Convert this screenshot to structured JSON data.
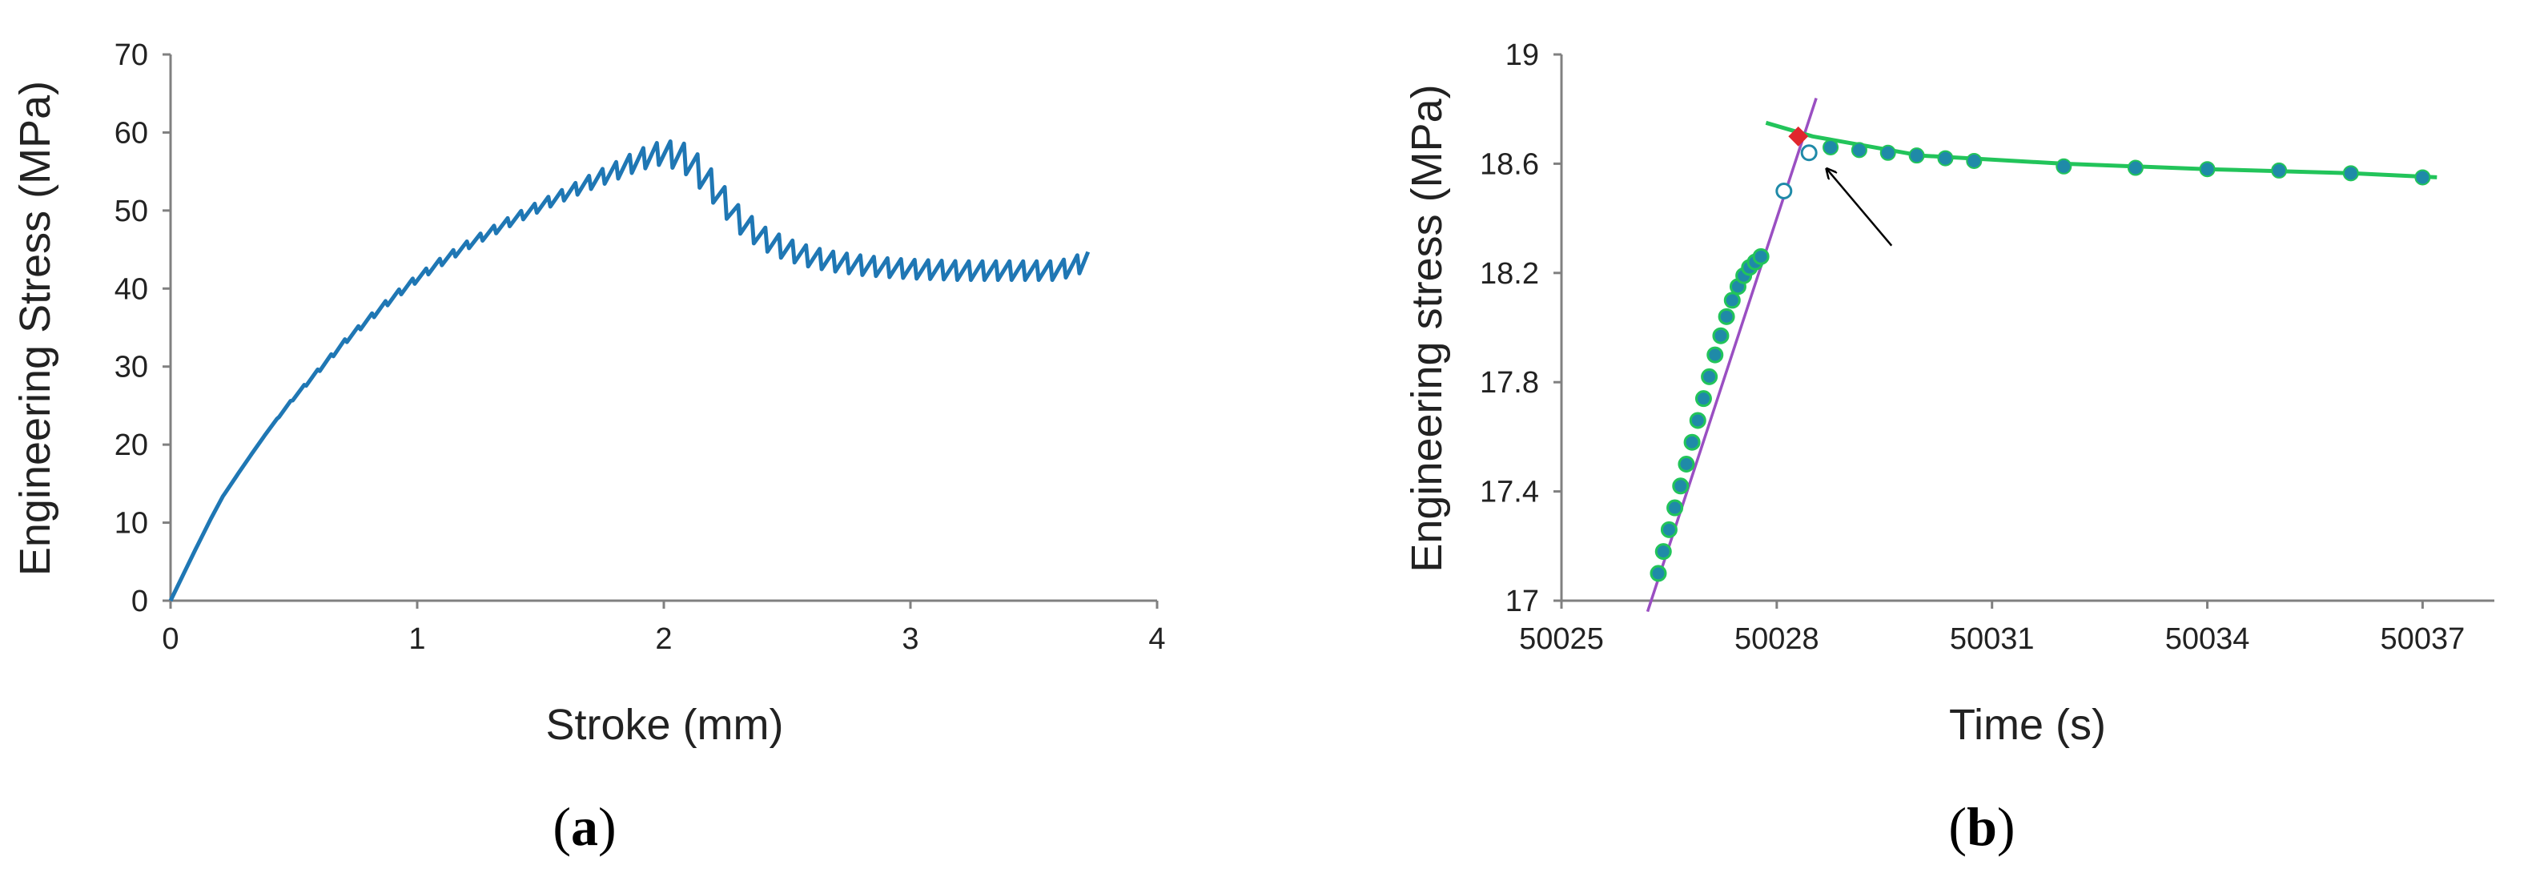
{
  "colors": {
    "curve_a": "#1f77b4",
    "marker_b": "#1f8aa8",
    "fit_purple": "#9a4fc2",
    "fit_green": "#22c45a",
    "highlight": "#e0262d",
    "axis": "#808080"
  },
  "chart_data": [
    {
      "panel": "(a)",
      "panel_open": "(",
      "panel_letter": "a",
      "panel_close": ")",
      "type": "line",
      "xlabel": "Stroke (mm)",
      "ylabel": "Engineering Stress (MPa)",
      "xlim": [
        0,
        4
      ],
      "ylim": [
        0,
        70
      ],
      "xticks": [
        "0",
        "1",
        "2",
        "3",
        "4"
      ],
      "yticks": [
        "0",
        "10",
        "20",
        "30",
        "40",
        "50",
        "60",
        "70"
      ],
      "grid": false,
      "legend": "none",
      "series": [
        {
          "description": "serrated stress-stroke curve",
          "x": [
            0,
            0.1,
            0.2,
            0.3,
            0.4,
            0.5,
            0.6,
            0.7,
            0.8,
            0.9,
            1.0,
            1.1,
            1.2,
            1.3,
            1.4,
            1.5,
            1.6,
            1.7,
            1.8,
            1.9,
            2.0,
            2.1,
            2.2,
            2.3,
            2.4,
            2.5,
            2.6,
            2.7,
            2.8,
            2.9,
            3.0,
            3.1,
            3.2,
            3.3,
            3.4,
            3.5,
            3.6,
            3.72
          ],
          "y": [
            0,
            6.5,
            12.8,
            17.5,
            22.0,
            26.0,
            29.5,
            33.0,
            36.0,
            38.8,
            41.3,
            43.5,
            45.5,
            47.3,
            49.0,
            50.6,
            52.1,
            53.6,
            55.0,
            56.5,
            57.5,
            56.5,
            53.0,
            49.0,
            46.5,
            45.0,
            44.0,
            43.4,
            43.0,
            42.7,
            42.5,
            42.4,
            42.3,
            42.3,
            42.3,
            42.3,
            42.3,
            43.5
          ],
          "serration_amplitude": [
            0,
            0,
            0,
            0,
            0,
            0.3,
            0.5,
            0.6,
            0.7,
            0.8,
            0.9,
            1.0,
            1.0,
            1.1,
            1.2,
            1.3,
            1.5,
            1.8,
            2.2,
            2.6,
            3.0,
            4.0,
            4.0,
            3.5,
            3.0,
            2.8,
            2.6,
            2.5,
            2.5,
            2.4,
            2.4,
            2.4,
            2.4,
            2.4,
            2.4,
            2.4,
            2.4,
            2.4
          ]
        }
      ]
    },
    {
      "panel": "(b)",
      "panel_open": "(",
      "panel_letter": "b",
      "panel_close": ")",
      "type": "scatter",
      "xlabel": "Time (s)",
      "ylabel": "Engineering stress (MPa)",
      "xlim": [
        50025,
        50038
      ],
      "ylim": [
        17,
        19
      ],
      "xticks": [
        "50025",
        "50028",
        "50031",
        "50034",
        "50037"
      ],
      "yticks": [
        "17",
        "17.4",
        "17.8",
        "18.2",
        "18.6",
        "19"
      ],
      "grid": false,
      "legend": "none",
      "series": [
        {
          "description": "loading points (filled)",
          "x": [
            50026.35,
            50026.42,
            50026.5,
            50026.58,
            50026.66,
            50026.74,
            50026.82,
            50026.9,
            50026.98,
            50027.06,
            50027.14,
            50027.22,
            50027.3,
            50027.38,
            50027.46,
            50027.54,
            50027.62,
            50027.7,
            50027.78
          ],
          "y": [
            17.1,
            17.18,
            17.26,
            17.34,
            17.42,
            17.5,
            17.58,
            17.66,
            17.74,
            17.82,
            17.9,
            17.97,
            18.04,
            18.1,
            18.15,
            18.19,
            18.22,
            18.24,
            18.26
          ]
        },
        {
          "description": "relaxation points (filled)",
          "x": [
            50028.75,
            50029.15,
            50029.55,
            50029.95,
            50030.35,
            50030.75,
            50032.0,
            50033.0,
            50034.0,
            50035.0,
            50036.0,
            50037.0
          ],
          "y": [
            18.66,
            18.65,
            18.64,
            18.63,
            18.62,
            18.61,
            18.59,
            18.585,
            18.58,
            18.575,
            18.565,
            18.55
          ]
        },
        {
          "description": "open markers",
          "x": [
            50028.1,
            50028.45
          ],
          "y": [
            18.5,
            18.64
          ]
        },
        {
          "description": "intersection marker",
          "x": [
            50028.3
          ],
          "y": [
            18.7
          ]
        },
        {
          "description": "linear fit",
          "x": [
            50026.2,
            50028.55
          ],
          "y": [
            16.96,
            18.84
          ]
        },
        {
          "description": "relaxation fit",
          "x": [
            50027.85,
            50028.5,
            50030,
            50032,
            50034,
            50036,
            50037.2
          ],
          "y": [
            18.75,
            18.7,
            18.63,
            18.6,
            18.58,
            18.565,
            18.55
          ]
        }
      ],
      "annotation": {
        "type": "arrow",
        "from": [
          50029.6,
          18.3
        ],
        "to": [
          50028.7,
          18.58
        ]
      }
    }
  ]
}
